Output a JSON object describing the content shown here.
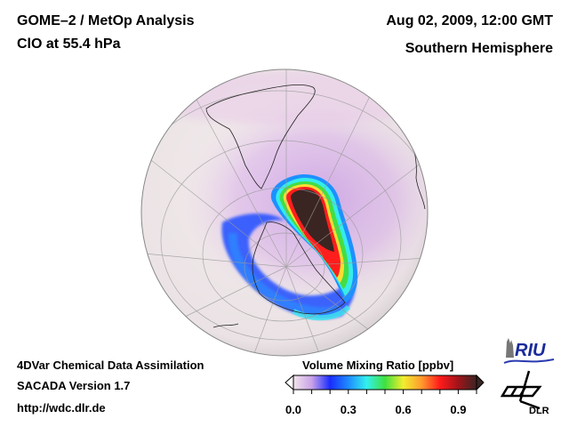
{
  "header": {
    "title": "GOME–2 / MetOp Analysis",
    "subtitle": "ClO at 55.4 hPa",
    "datetime": "Aug 02, 2009, 12:00 GMT",
    "region": "Southern Hemisphere"
  },
  "footer": {
    "line1": "4DVar Chemical Data Assimilation",
    "line2": "SACADA Version 1.7",
    "line3": "http://wdc.dlr.de"
  },
  "colorbar": {
    "title": "Volume Mixing Ratio [ppbv]",
    "range": [
      0.0,
      1.0
    ],
    "ticks": [
      "0.0",
      "0.3",
      "0.6",
      "0.9"
    ],
    "tick_values": [
      0.0,
      0.3,
      0.6,
      0.9
    ],
    "colors": [
      "#f2e4ea",
      "#c9a3e8",
      "#1a2cff",
      "#1e8bff",
      "#33f0ee",
      "#3fe03f",
      "#f2ee2e",
      "#ff9a2e",
      "#ff1a1a",
      "#a0141a",
      "#3a2522"
    ],
    "extend": "both"
  },
  "map": {
    "projection": "orthographic",
    "hemisphere": "south",
    "variable": "ClO",
    "pressure_level_hpa": 55.4,
    "ocean_color": "#f0e6e8",
    "feature": "polar vortex ClO enhancement, maximum > 0.9 ppbv over Antarctic Peninsula / Weddell sector"
  },
  "logos": {
    "riu": "RIU",
    "dlr": "DLR"
  }
}
